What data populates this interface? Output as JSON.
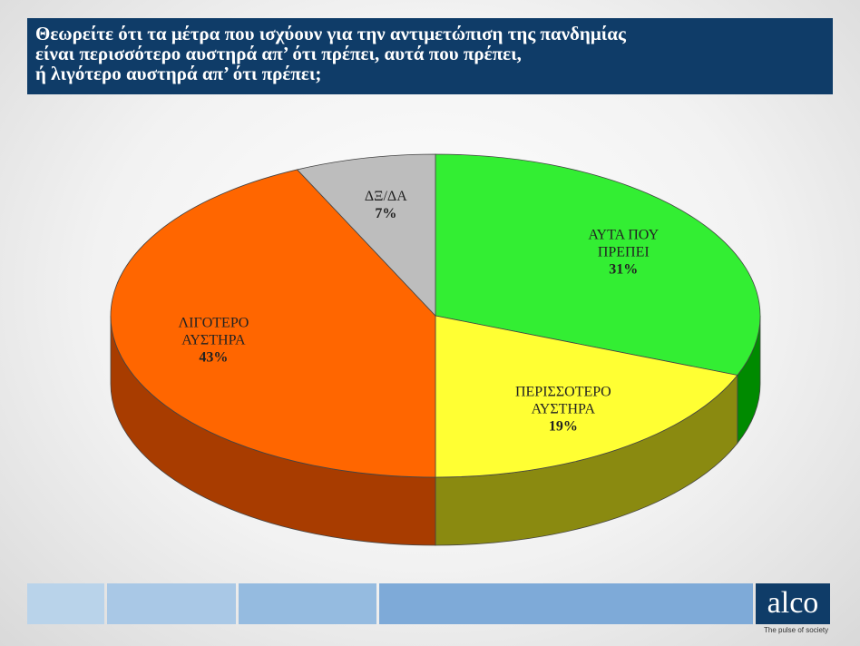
{
  "chart_data": {
    "type": "pie",
    "title": [
      "Θεωρείτε ότι τα μέτρα που ισχύουν για την αντιμετώπιση της πανδημίας",
      "είναι περισσότερο αυστηρά απ’ ότι πρέπει, αυτά που πρέπει,",
      "ή λιγότερο αυστηρά απ’ ότι πρέπει;"
    ],
    "categories": [
      "ΑΥΤΑ ΠΟΥ ΠΡΕΠΕΙ",
      "ΠΕΡΙΣΣΟΤΕΡΟ ΑΥΣΤΗΡΑ",
      "ΛΙΓΟΤΕΡΟ ΑΥΣΤΗΡΑ",
      "ΔΞ/ΔΑ"
    ],
    "values": [
      31,
      19,
      43,
      7
    ],
    "value_labels": [
      "31%",
      "19%",
      "43%",
      "7%"
    ],
    "colors": [
      "#33ee33",
      "#ffff33",
      "#ff6600",
      "#bdbdbd"
    ],
    "side_colors": [
      "#008a00",
      "#8a8a10",
      "#a83c00",
      "#7a7a7a"
    ]
  },
  "footer": {
    "logo": "alco",
    "tagline": "The pulse of society"
  }
}
